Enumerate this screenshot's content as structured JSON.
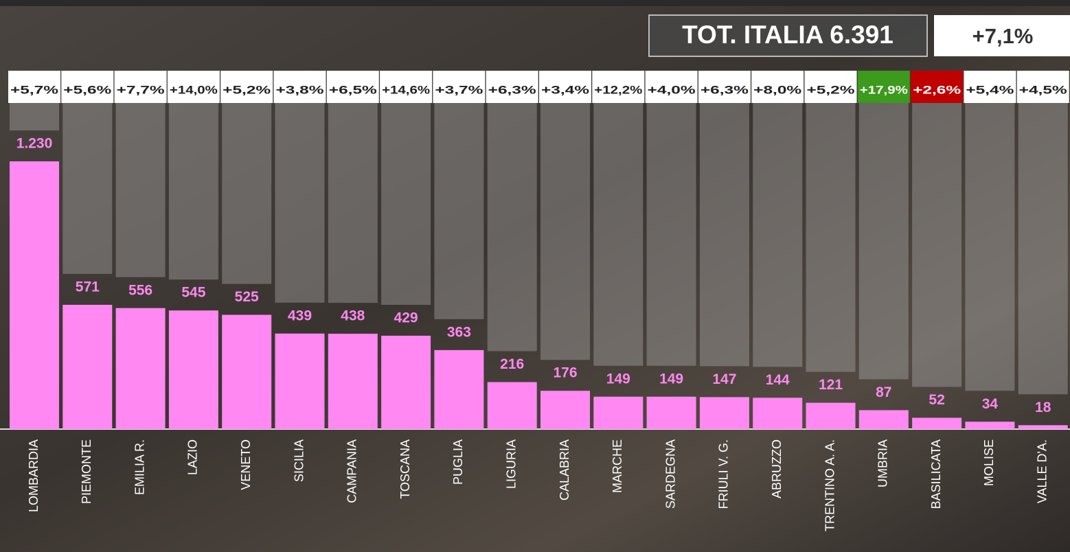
{
  "chart_data": {
    "type": "bar",
    "total_text": "TOT. ITALIA 6.391",
    "total_change": "+7,1%",
    "categories": [
      "LOMBARDIA",
      "PIEMONTE",
      "EMILIA R.",
      "LAZIO",
      "VENETO",
      "SICILIA",
      "CAMPANIA",
      "TOSCANA",
      "PUGLIA",
      "LIGURIA",
      "CALABRIA",
      "MARCHE",
      "SARDEGNA",
      "FRIULI V. G.",
      "ABRUZZO",
      "TRENTINO A. A.",
      "UMBRIA",
      "BASILICATA",
      "MOLISE",
      "VALLE D'A."
    ],
    "values": [
      1230,
      571,
      556,
      545,
      525,
      439,
      438,
      429,
      363,
      216,
      176,
      149,
      149,
      147,
      144,
      121,
      87,
      52,
      34,
      18
    ],
    "value_labels": [
      "1.230",
      "571",
      "556",
      "545",
      "525",
      "439",
      "438",
      "429",
      "363",
      "216",
      "176",
      "149",
      "149",
      "147",
      "144",
      "121",
      "87",
      "52",
      "34",
      "18"
    ],
    "changes": [
      "+5,7%",
      "+5,6%",
      "+7,7%",
      "+14,0%",
      "+5,2%",
      "+3,8%",
      "+6,5%",
      "+14,6%",
      "+3,7%",
      "+6,3%",
      "+3,4%",
      "+12,2%",
      "+4,0%",
      "+6,3%",
      "+8,0%",
      "+5,2%",
      "+17,9%",
      "+2,6%",
      "+5,4%",
      "+4,5%"
    ],
    "change_colors": [
      "#ffffff",
      "#ffffff",
      "#ffffff",
      "#ffffff",
      "#ffffff",
      "#ffffff",
      "#ffffff",
      "#ffffff",
      "#ffffff",
      "#ffffff",
      "#ffffff",
      "#ffffff",
      "#ffffff",
      "#ffffff",
      "#ffffff",
      "#ffffff",
      "#3c9a1c",
      "#c00000",
      "#ffffff",
      "#ffffff"
    ],
    "color": "#ff88f2"
  }
}
